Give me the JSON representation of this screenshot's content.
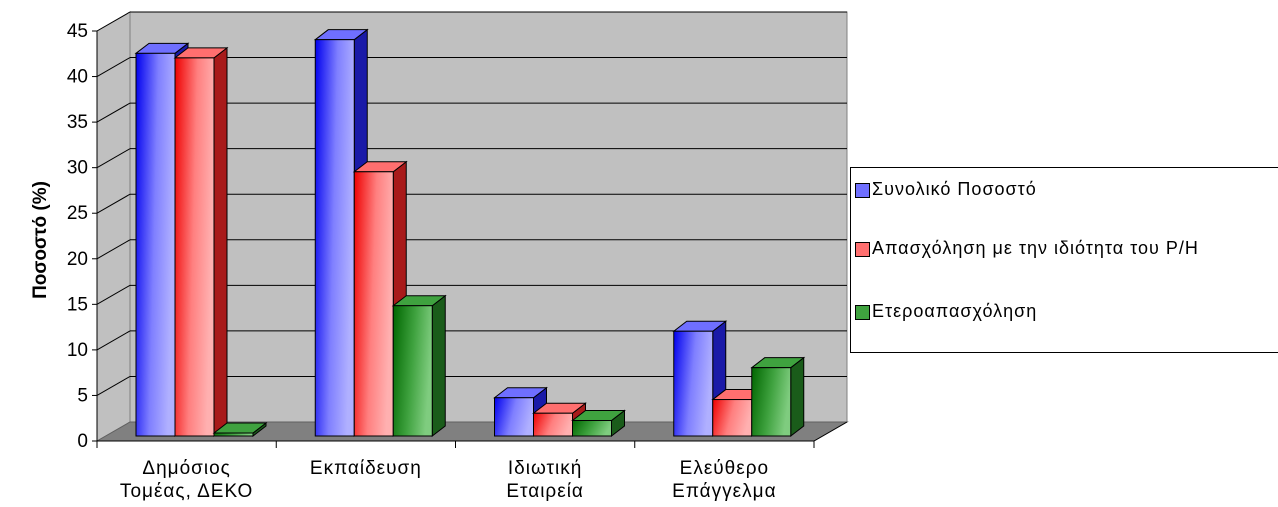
{
  "chart_data": {
    "type": "bar",
    "title": "",
    "xlabel": "",
    "ylabel": "Ποσοστό (%)",
    "ylim": [
      0,
      45
    ],
    "yticks": [
      "0",
      "5",
      "10",
      "15",
      "20",
      "25",
      "30",
      "35",
      "40",
      "45"
    ],
    "categories": [
      [
        "Δημόσιος",
        "Τομέας, ΔΕΚΟ"
      ],
      [
        "Εκπαίδευση"
      ],
      [
        "Ιδιωτική",
        "Εταιρεία"
      ],
      [
        "Ελεύθερο",
        "Επάγγελμα"
      ]
    ],
    "series": [
      {
        "name": "Συνολικό Ποσοστό",
        "values": [
          42,
          43.5,
          4.2,
          11.5
        ]
      },
      {
        "name": "Απασχόληση με την ιδιότητα του Ρ/Η",
        "values": [
          41.5,
          29,
          2.5,
          4
        ]
      },
      {
        "name": "Ετεροαπασχόληση",
        "values": [
          0.3,
          14.3,
          1.7,
          7.5
        ]
      }
    ],
    "grid": true,
    "legend_position": "right",
    "three_d": true,
    "colors": {
      "series": [
        "#6f6fff",
        "#ff6f6f",
        "#3fa23f"
      ],
      "series_dark": [
        "#1a1aa8",
        "#a81a1a",
        "#1a5c1a"
      ],
      "wall": "#c0c0c0",
      "floor": "#808080"
    }
  }
}
